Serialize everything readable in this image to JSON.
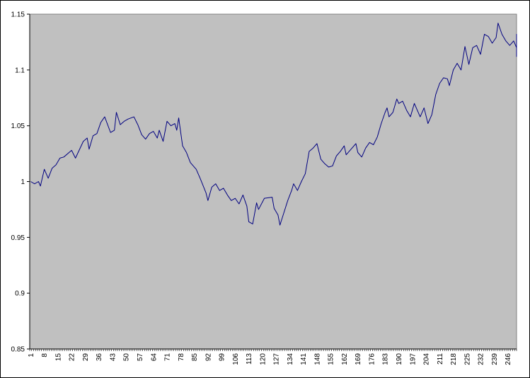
{
  "chart_data": {
    "type": "line",
    "title": "",
    "xlabel": "",
    "ylabel": "",
    "ylim": [
      0.85,
      1.15
    ],
    "y_ticks": [
      0.85,
      0.9,
      0.95,
      1,
      1.05,
      1.1,
      1.15
    ],
    "y_tick_labels": [
      "0.85",
      "0.9",
      "0.95",
      "1",
      "1.05",
      "1.1",
      "1.15"
    ],
    "x_range": [
      1,
      250
    ],
    "x_tick_labels": [
      "1",
      "8",
      "15",
      "22",
      "29",
      "36",
      "43",
      "50",
      "57",
      "64",
      "71",
      "78",
      "85",
      "92",
      "99",
      "106",
      "113",
      "120",
      "127",
      "134",
      "141",
      "148",
      "155",
      "162",
      "169",
      "176",
      "183",
      "190",
      "197",
      "204",
      "211",
      "218",
      "225",
      "232",
      "239",
      "246"
    ],
    "grid": false,
    "legend": "none",
    "colors": {
      "plot_background": "#C0C0C0",
      "line": "#000080",
      "frame": "#000000"
    },
    "anchors": [
      [
        1,
        1.0
      ],
      [
        3,
        0.998
      ],
      [
        5,
        1.0
      ],
      [
        6,
        0.996
      ],
      [
        8,
        1.011
      ],
      [
        10,
        1.003
      ],
      [
        12,
        1.012
      ],
      [
        14,
        1.015
      ],
      [
        16,
        1.021
      ],
      [
        18,
        1.022
      ],
      [
        22,
        1.028
      ],
      [
        24,
        1.021
      ],
      [
        28,
        1.036
      ],
      [
        30,
        1.039
      ],
      [
        31,
        1.029
      ],
      [
        33,
        1.041
      ],
      [
        35,
        1.043
      ],
      [
        37,
        1.053
      ],
      [
        39,
        1.058
      ],
      [
        42,
        1.044
      ],
      [
        44,
        1.046
      ],
      [
        45,
        1.062
      ],
      [
        47,
        1.051
      ],
      [
        49,
        1.054
      ],
      [
        51,
        1.056
      ],
      [
        54,
        1.058
      ],
      [
        56,
        1.051
      ],
      [
        58,
        1.042
      ],
      [
        60,
        1.038
      ],
      [
        62,
        1.043
      ],
      [
        64,
        1.045
      ],
      [
        66,
        1.039
      ],
      [
        67,
        1.046
      ],
      [
        69,
        1.036
      ],
      [
        71,
        1.054
      ],
      [
        73,
        1.05
      ],
      [
        75,
        1.052
      ],
      [
        76,
        1.046
      ],
      [
        77,
        1.057
      ],
      [
        79,
        1.032
      ],
      [
        81,
        1.026
      ],
      [
        83,
        1.017
      ],
      [
        86,
        1.011
      ],
      [
        88,
        1.003
      ],
      [
        91,
        0.99
      ],
      [
        92,
        0.983
      ],
      [
        94,
        0.995
      ],
      [
        96,
        0.998
      ],
      [
        98,
        0.992
      ],
      [
        100,
        0.994
      ],
      [
        102,
        0.988
      ],
      [
        104,
        0.983
      ],
      [
        106,
        0.985
      ],
      [
        108,
        0.98
      ],
      [
        110,
        0.988
      ],
      [
        112,
        0.978
      ],
      [
        113,
        0.964
      ],
      [
        115,
        0.962
      ],
      [
        117,
        0.981
      ],
      [
        118,
        0.975
      ],
      [
        121,
        0.985
      ],
      [
        125,
        0.986
      ],
      [
        126,
        0.976
      ],
      [
        128,
        0.97
      ],
      [
        129,
        0.961
      ],
      [
        131,
        0.972
      ],
      [
        133,
        0.983
      ],
      [
        135,
        0.992
      ],
      [
        136,
        0.998
      ],
      [
        138,
        0.992
      ],
      [
        140,
        1.0
      ],
      [
        142,
        1.007
      ],
      [
        144,
        1.027
      ],
      [
        146,
        1.03
      ],
      [
        148,
        1.034
      ],
      [
        150,
        1.02
      ],
      [
        152,
        1.016
      ],
      [
        154,
        1.013
      ],
      [
        156,
        1.014
      ],
      [
        158,
        1.023
      ],
      [
        160,
        1.027
      ],
      [
        162,
        1.032
      ],
      [
        163,
        1.024
      ],
      [
        166,
        1.03
      ],
      [
        168,
        1.034
      ],
      [
        169,
        1.026
      ],
      [
        171,
        1.022
      ],
      [
        173,
        1.03
      ],
      [
        175,
        1.035
      ],
      [
        177,
        1.033
      ],
      [
        179,
        1.04
      ],
      [
        181,
        1.052
      ],
      [
        183,
        1.062
      ],
      [
        184,
        1.066
      ],
      [
        185,
        1.058
      ],
      [
        187,
        1.062
      ],
      [
        189,
        1.074
      ],
      [
        190,
        1.07
      ],
      [
        192,
        1.072
      ],
      [
        194,
        1.064
      ],
      [
        196,
        1.058
      ],
      [
        198,
        1.07
      ],
      [
        199,
        1.066
      ],
      [
        201,
        1.058
      ],
      [
        203,
        1.066
      ],
      [
        205,
        1.052
      ],
      [
        207,
        1.06
      ],
      [
        209,
        1.078
      ],
      [
        211,
        1.088
      ],
      [
        213,
        1.093
      ],
      [
        215,
        1.092
      ],
      [
        216,
        1.086
      ],
      [
        218,
        1.1
      ],
      [
        220,
        1.106
      ],
      [
        222,
        1.1
      ],
      [
        224,
        1.121
      ],
      [
        226,
        1.105
      ],
      [
        228,
        1.12
      ],
      [
        230,
        1.122
      ],
      [
        232,
        1.114
      ],
      [
        234,
        1.132
      ],
      [
        236,
        1.13
      ],
      [
        238,
        1.124
      ],
      [
        240,
        1.129
      ],
      [
        241,
        1.142
      ],
      [
        243,
        1.132
      ],
      [
        245,
        1.126
      ],
      [
        247,
        1.122
      ],
      [
        249,
        1.126
      ],
      [
        251,
        1.12
      ],
      [
        253,
        1.128
      ],
      [
        254,
        1.132
      ],
      [
        256,
        1.112
      ],
      [
        257,
        1.118
      ]
    ]
  }
}
